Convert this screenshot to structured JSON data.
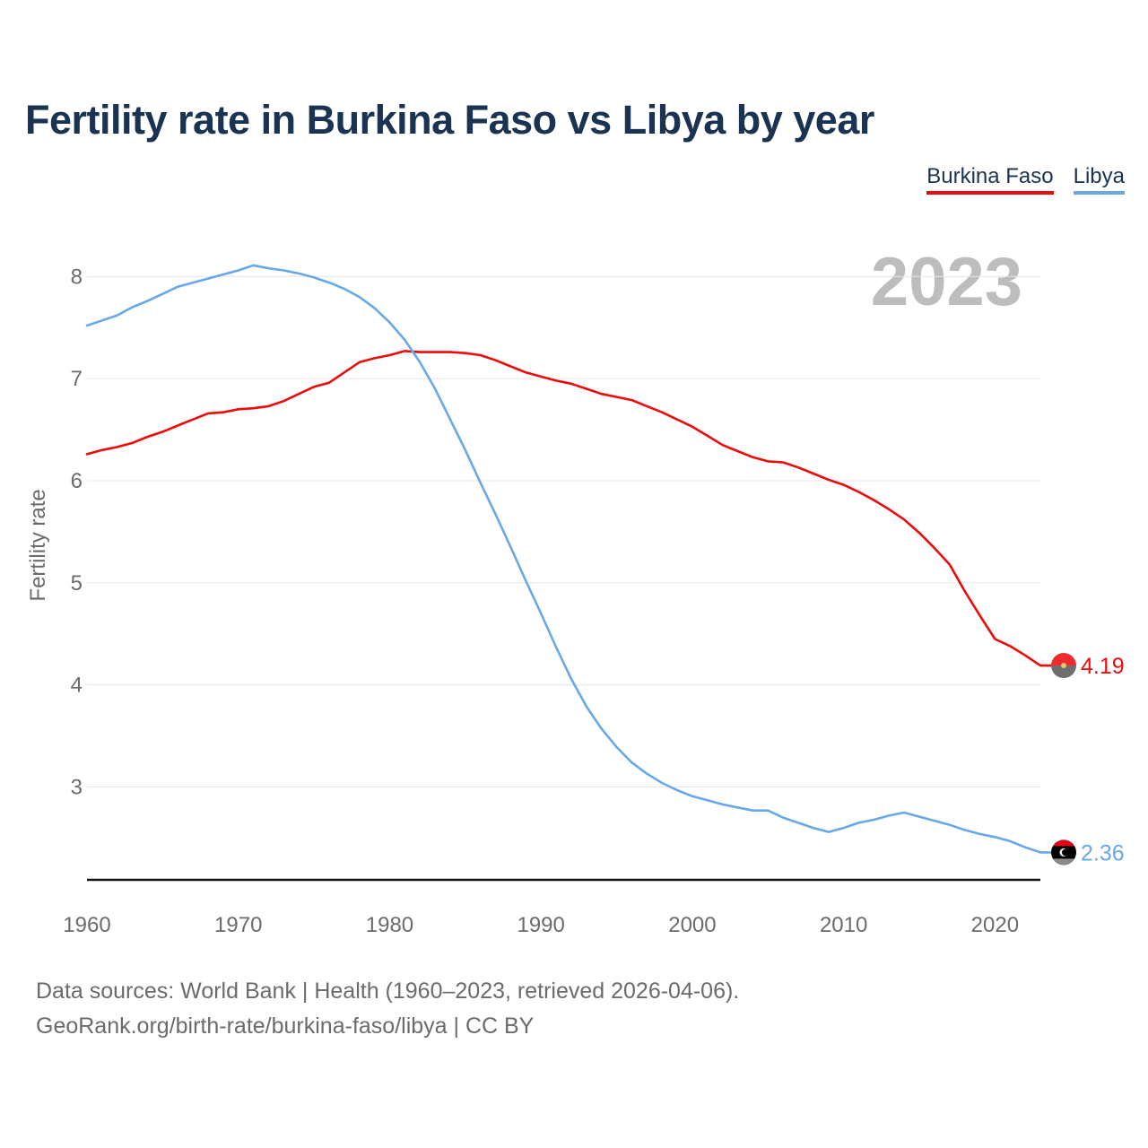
{
  "header": {
    "title": "Fertility rate in Burkina Faso vs Libya by year"
  },
  "legend": {
    "items": [
      {
        "label": "Burkina Faso",
        "color": "#ee0a0a"
      },
      {
        "label": "Libya",
        "color": "#67a9e8"
      }
    ]
  },
  "footer": {
    "source": "Data sources: World Bank | Health (1960–2023, retrieved 2026-04-06).",
    "credit": "GeoRank.org/birth-rate/burkina-faso/libya | CC BY"
  },
  "chart_data": {
    "type": "line",
    "title": "Fertility rate in Burkina Faso vs Libya by year",
    "xlabel": "",
    "ylabel": "Fertility rate",
    "year_label": "2023",
    "xlim": [
      1960,
      2023
    ],
    "ylim": [
      2.1,
      8.6
    ],
    "x_ticks": [
      1960,
      1970,
      1980,
      1990,
      2000,
      2010,
      2020
    ],
    "y_ticks": [
      3,
      4,
      5,
      6,
      7,
      8
    ],
    "grid": true,
    "legend_position": "top-right",
    "x": [
      1960,
      1961,
      1962,
      1963,
      1964,
      1965,
      1966,
      1967,
      1968,
      1969,
      1970,
      1971,
      1972,
      1973,
      1974,
      1975,
      1976,
      1977,
      1978,
      1979,
      1980,
      1981,
      1982,
      1983,
      1984,
      1985,
      1986,
      1987,
      1988,
      1989,
      1990,
      1991,
      1992,
      1993,
      1994,
      1995,
      1996,
      1997,
      1998,
      1999,
      2000,
      2001,
      2002,
      2003,
      2004,
      2005,
      2006,
      2007,
      2008,
      2009,
      2010,
      2011,
      2012,
      2013,
      2014,
      2015,
      2016,
      2017,
      2018,
      2019,
      2020,
      2021,
      2022,
      2023
    ],
    "series": [
      {
        "name": "Burkina Faso",
        "color": "#ee0a0a",
        "end_label": "4.19",
        "values": [
          6.26,
          6.3,
          6.33,
          6.37,
          6.43,
          6.48,
          6.54,
          6.6,
          6.66,
          6.67,
          6.7,
          6.71,
          6.73,
          6.78,
          6.85,
          6.92,
          6.96,
          7.06,
          7.16,
          7.2,
          7.23,
          7.27,
          7.26,
          7.26,
          7.26,
          7.25,
          7.23,
          7.18,
          7.12,
          7.06,
          7.02,
          6.98,
          6.95,
          6.9,
          6.85,
          6.82,
          6.79,
          6.73,
          6.67,
          6.6,
          6.53,
          6.44,
          6.35,
          6.29,
          6.23,
          6.19,
          6.18,
          6.13,
          6.07,
          6.01,
          5.96,
          5.89,
          5.81,
          5.72,
          5.62,
          5.49,
          5.34,
          5.18,
          4.92,
          4.68,
          4.45,
          4.38,
          4.29,
          4.19
        ]
      },
      {
        "name": "Libya",
        "color": "#67a9e8",
        "end_label": "2.36",
        "values": [
          7.52,
          7.57,
          7.62,
          7.7,
          7.76,
          7.83,
          7.9,
          7.94,
          7.98,
          8.02,
          8.06,
          8.11,
          8.08,
          8.06,
          8.03,
          7.99,
          7.94,
          7.88,
          7.8,
          7.69,
          7.55,
          7.38,
          7.16,
          6.9,
          6.6,
          6.3,
          5.98,
          5.67,
          5.35,
          5.02,
          4.7,
          4.37,
          4.06,
          3.79,
          3.57,
          3.39,
          3.24,
          3.13,
          3.04,
          2.97,
          2.91,
          2.87,
          2.83,
          2.8,
          2.77,
          2.77,
          2.7,
          2.65,
          2.6,
          2.56,
          2.6,
          2.65,
          2.68,
          2.72,
          2.75,
          2.71,
          2.67,
          2.63,
          2.58,
          2.54,
          2.51,
          2.47,
          2.41,
          2.36
        ]
      }
    ]
  }
}
